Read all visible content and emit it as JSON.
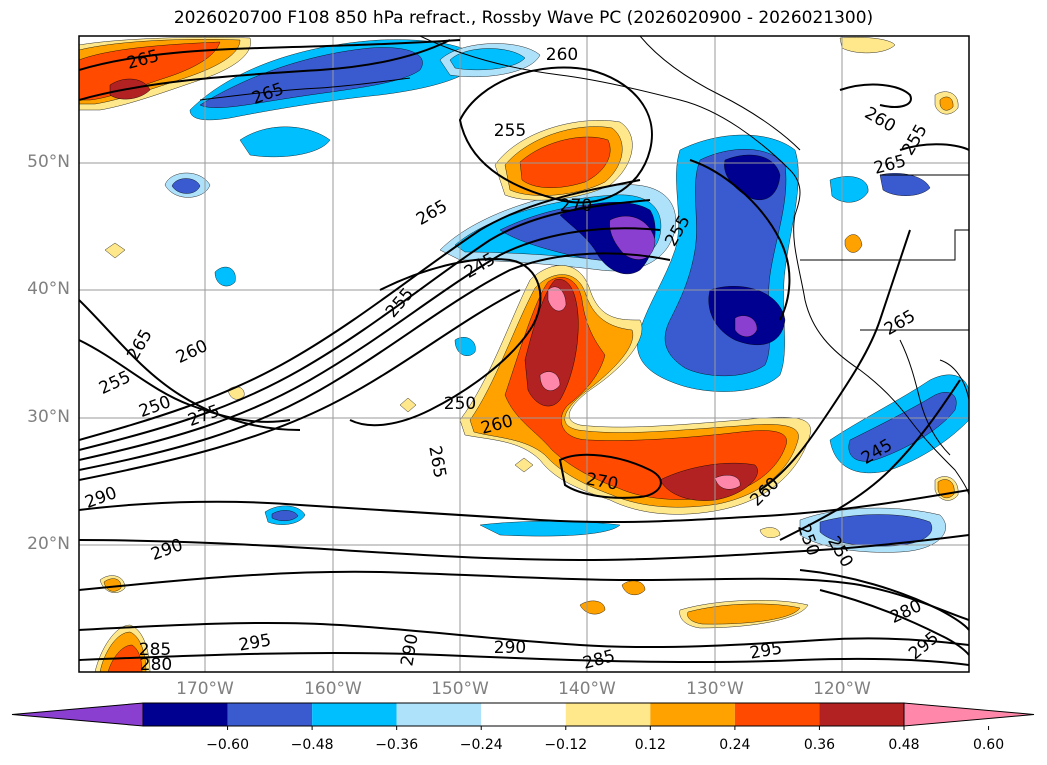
{
  "title": "2026020700 F108 850 hPa refract., Rossby Wave PC (2026020900 - 2026021300)",
  "lat_labels": [
    "50°N",
    "40°N",
    "30°N",
    "20°N"
  ],
  "lon_labels": [
    "170°W",
    "160°W",
    "150°W",
    "140°W",
    "130°W",
    "120°W"
  ],
  "colorbar": {
    "ticks": [
      "−0.60",
      "−0.48",
      "−0.36",
      "−0.24",
      "−0.12",
      "0.12",
      "0.24",
      "0.36",
      "0.48",
      "0.60"
    ],
    "colors": [
      "#8b3fd1",
      "#000090",
      "#3a5ad0",
      "#00bfff",
      "#aee2fb",
      "#ffffff",
      "#ffe88c",
      "#ffa200",
      "#ff4a00",
      "#b22222",
      "#ff88aa"
    ]
  },
  "contour_labels": [
    "265",
    "265",
    "260",
    "255",
    "265",
    "270",
    "255",
    "245",
    "255",
    "265",
    "260",
    "255",
    "250",
    "275",
    "250",
    "260",
    "265",
    "270",
    "290",
    "290",
    "285",
    "280",
    "295",
    "290",
    "290",
    "285",
    "295",
    "260",
    "250",
    "245",
    "250",
    "280",
    "295",
    "265",
    "260",
    "265",
    "255"
  ],
  "shading_colors": {
    "purple": "#8b3fd1",
    "navy": "#000090",
    "royal": "#3a5ad0",
    "cyan": "#00bfff",
    "paleblue": "#aee2fb",
    "yellow": "#ffe88c",
    "orange": "#ffa200",
    "redorange": "#ff4a00",
    "darkred": "#b22222",
    "pink": "#ff88aa"
  }
}
